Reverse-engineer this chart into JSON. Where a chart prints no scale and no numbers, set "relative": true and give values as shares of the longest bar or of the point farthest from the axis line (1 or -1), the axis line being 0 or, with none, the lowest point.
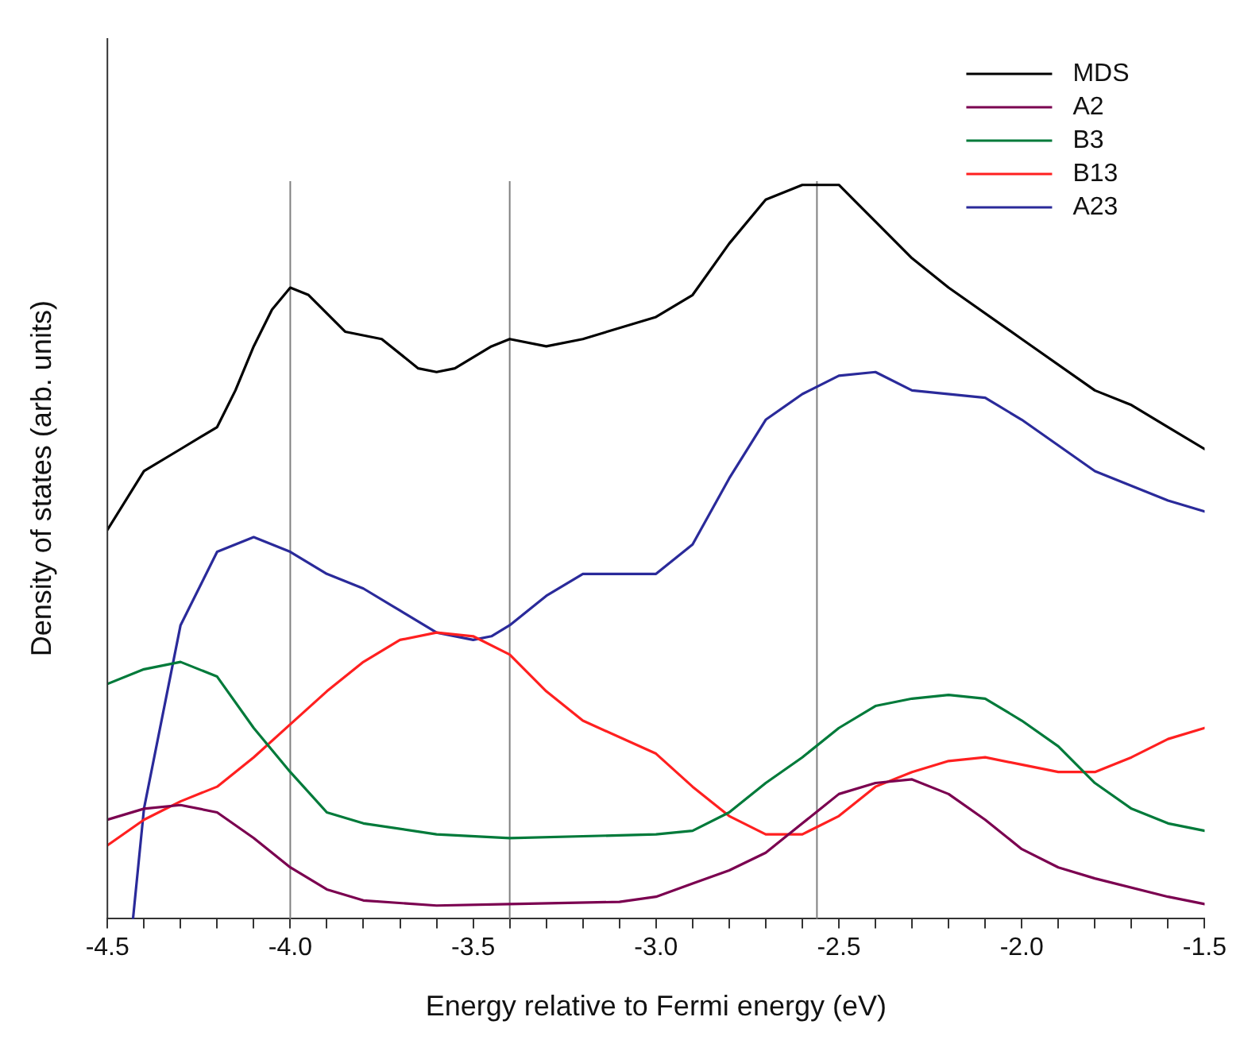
{
  "chart_data": {
    "type": "line",
    "xlabel": "Energy relative to Fermi energy (eV)",
    "ylabel": "Density of states (arb. units)",
    "relative": true,
    "grid": false,
    "legend": "top right",
    "marker": "none",
    "line_style": "solid",
    "xlim": [
      -4.5,
      -1.5
    ],
    "xticks": [
      {
        "value": -4.5,
        "label": "-4.5"
      },
      {
        "value": -4.4,
        "label": null
      },
      {
        "value": -4.3,
        "label": null
      },
      {
        "value": -4.2,
        "label": null
      },
      {
        "value": -4.1,
        "label": null
      },
      {
        "value": -4.0,
        "label": "-4.0"
      },
      {
        "value": -3.9,
        "label": null
      },
      {
        "value": -3.8,
        "label": null
      },
      {
        "value": -3.7,
        "label": null
      },
      {
        "value": -3.6,
        "label": null
      },
      {
        "value": -3.5,
        "label": "-3.5"
      },
      {
        "value": -3.4,
        "label": null
      },
      {
        "value": -3.3,
        "label": null
      },
      {
        "value": -3.2,
        "label": null
      },
      {
        "value": -3.1,
        "label": null
      },
      {
        "value": -3.0,
        "label": "-3.0"
      },
      {
        "value": -2.9,
        "label": null
      },
      {
        "value": -2.8,
        "label": null
      },
      {
        "value": -2.7,
        "label": null
      },
      {
        "value": -2.6,
        "label": null
      },
      {
        "value": -2.5,
        "label": "-2.5"
      },
      {
        "value": -2.4,
        "label": null
      },
      {
        "value": -2.3,
        "label": null
      },
      {
        "value": -2.2,
        "label": null
      },
      {
        "value": -2.1,
        "label": null
      },
      {
        "value": -2.0,
        "label": "-2.0"
      },
      {
        "value": -1.9,
        "label": null
      },
      {
        "value": -1.8,
        "label": null
      },
      {
        "value": -1.7,
        "label": null
      },
      {
        "value": -1.6,
        "label": null
      },
      {
        "value": -1.5,
        "label": "-1.5"
      }
    ],
    "ref_lines": [
      {
        "axis": "x",
        "value": -4.0,
        "color": "#808080"
      },
      {
        "axis": "x",
        "value": -3.4,
        "color": "#808080"
      },
      {
        "axis": "x",
        "value": -2.56,
        "color": "#808080"
      }
    ],
    "series": [
      {
        "name": "MDS",
        "color": "#000000",
        "x": [
          -4.5,
          -4.4,
          -4.3,
          -4.2,
          -4.15,
          -4.1,
          -4.05,
          -4.0,
          -3.95,
          -3.85,
          -3.75,
          -3.65,
          -3.6,
          -3.55,
          -3.45,
          -3.4,
          -3.3,
          -3.2,
          -3.0,
          -2.9,
          -2.8,
          -2.7,
          -2.6,
          -2.5,
          -2.4,
          -2.3,
          -2.2,
          -2.0,
          -1.8,
          -1.7,
          -1.6,
          -1.5
        ],
        "values": [
          0.53,
          0.61,
          0.64,
          0.67,
          0.72,
          0.78,
          0.83,
          0.86,
          0.85,
          0.8,
          0.79,
          0.75,
          0.745,
          0.75,
          0.78,
          0.79,
          0.78,
          0.79,
          0.82,
          0.85,
          0.92,
          0.98,
          1.0,
          1.0,
          0.95,
          0.9,
          0.86,
          0.79,
          0.72,
          0.7,
          0.67,
          0.64
        ]
      },
      {
        "name": "A2",
        "color": "#7b0050",
        "x": [
          -4.5,
          -4.4,
          -4.3,
          -4.2,
          -4.1,
          -4.0,
          -3.9,
          -3.8,
          -3.6,
          -3.4,
          -3.1,
          -3.0,
          -2.9,
          -2.8,
          -2.7,
          -2.6,
          -2.5,
          -2.4,
          -2.3,
          -2.2,
          -2.1,
          -2.0,
          -1.9,
          -1.8,
          -1.6,
          -1.5
        ],
        "values": [
          0.135,
          0.15,
          0.155,
          0.145,
          0.11,
          0.07,
          0.04,
          0.025,
          0.018,
          0.02,
          0.023,
          0.03,
          0.048,
          0.066,
          0.09,
          0.13,
          0.17,
          0.185,
          0.19,
          0.17,
          0.135,
          0.095,
          0.07,
          0.055,
          0.03,
          0.02
        ]
      },
      {
        "name": "B3",
        "color": "#007a3a",
        "x": [
          -4.5,
          -4.4,
          -4.3,
          -4.2,
          -4.1,
          -4.0,
          -3.9,
          -3.8,
          -3.6,
          -3.4,
          -3.0,
          -2.9,
          -2.8,
          -2.7,
          -2.6,
          -2.5,
          -2.4,
          -2.3,
          -2.2,
          -2.1,
          -2.0,
          -1.9,
          -1.8,
          -1.7,
          -1.6,
          -1.5
        ],
        "values": [
          0.32,
          0.34,
          0.35,
          0.33,
          0.26,
          0.2,
          0.145,
          0.13,
          0.115,
          0.11,
          0.115,
          0.12,
          0.145,
          0.185,
          0.22,
          0.26,
          0.29,
          0.3,
          0.305,
          0.3,
          0.27,
          0.235,
          0.185,
          0.15,
          0.13,
          0.12
        ]
      },
      {
        "name": "B13",
        "color": "#ff2020",
        "x": [
          -4.5,
          -4.4,
          -4.3,
          -4.2,
          -4.1,
          -4.0,
          -3.9,
          -3.8,
          -3.7,
          -3.6,
          -3.5,
          -3.4,
          -3.3,
          -3.2,
          -3.0,
          -2.9,
          -2.8,
          -2.7,
          -2.6,
          -2.5,
          -2.4,
          -2.3,
          -2.2,
          -2.1,
          -2.0,
          -1.9,
          -1.8,
          -1.7,
          -1.6,
          -1.5
        ],
        "values": [
          0.1,
          0.135,
          0.16,
          0.18,
          0.22,
          0.265,
          0.31,
          0.35,
          0.38,
          0.39,
          0.385,
          0.36,
          0.31,
          0.27,
          0.225,
          0.18,
          0.14,
          0.115,
          0.115,
          0.14,
          0.18,
          0.2,
          0.215,
          0.22,
          0.21,
          0.2,
          0.2,
          0.22,
          0.245,
          0.26
        ]
      },
      {
        "name": "A23",
        "color": "#2a2a9a",
        "x": [
          -4.43,
          -4.4,
          -4.3,
          -4.2,
          -4.1,
          -4.0,
          -3.9,
          -3.8,
          -3.7,
          -3.6,
          -3.5,
          -3.45,
          -3.4,
          -3.3,
          -3.2,
          -3.1,
          -3.0,
          -2.9,
          -2.8,
          -2.7,
          -2.6,
          -2.5,
          -2.4,
          -2.3,
          -2.1,
          -2.0,
          -1.8,
          -1.6,
          -1.5
        ],
        "values": [
          0,
          0.15,
          0.4,
          0.5,
          0.52,
          0.5,
          0.47,
          0.45,
          0.42,
          0.39,
          0.38,
          0.385,
          0.4,
          0.44,
          0.47,
          0.47,
          0.47,
          0.51,
          0.6,
          0.68,
          0.715,
          0.74,
          0.745,
          0.72,
          0.71,
          0.68,
          0.61,
          0.57,
          0.555
        ]
      }
    ]
  }
}
